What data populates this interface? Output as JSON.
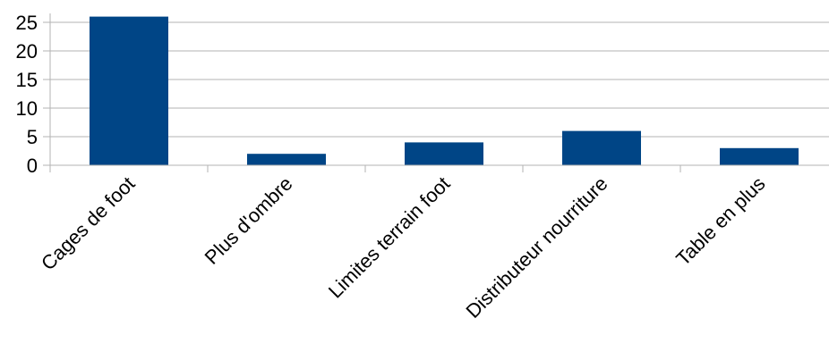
{
  "chart_data": {
    "type": "bar",
    "title": "",
    "xlabel": "",
    "ylabel": "",
    "categories": [
      "Cages de foot",
      "Plus d'ombre",
      "Limites terrain foot",
      "Distributeur nourriture",
      "Table en plus"
    ],
    "values": [
      26,
      2,
      4,
      6,
      3
    ],
    "ylim": [
      0,
      25
    ],
    "yticks": [
      0,
      5,
      10,
      15,
      20,
      25
    ],
    "grid": true,
    "legend": "none",
    "bar_color": "#004586",
    "grid_color": "#b3b3b3"
  }
}
